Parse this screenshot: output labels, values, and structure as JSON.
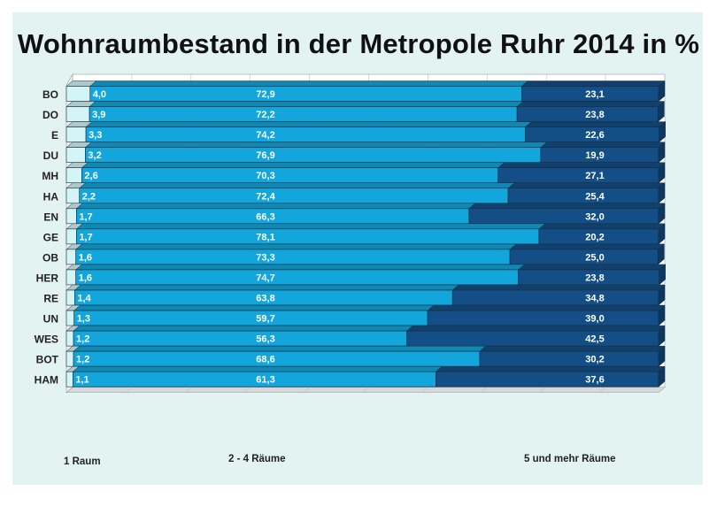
{
  "chart_data": {
    "type": "bar",
    "orientation": "horizontal",
    "stacked": true,
    "title": "Wohnraumbestand in der Metropole Ruhr 2014 in %",
    "categories": [
      "BO",
      "DO",
      "E",
      "DU",
      "MH",
      "HA",
      "EN",
      "GE",
      "OB",
      "HER",
      "RE",
      "UN",
      "WES",
      "BOT",
      "HAM"
    ],
    "series": [
      {
        "name": "1 Raum",
        "color": "#d4f5f7",
        "values": [
          "4,0",
          "3,9",
          "3,3",
          "3,2",
          "2,6",
          "2,2",
          "1,7",
          "1,7",
          "1,6",
          "1,6",
          "1,4",
          "1,3",
          "1,2",
          "1,2",
          "1,1"
        ]
      },
      {
        "name": "2 - 4 Räume",
        "color": "#12a6dc",
        "values": [
          "72,9",
          "72,2",
          "74,2",
          "76,9",
          "70,3",
          "72,4",
          "66,3",
          "78,1",
          "73,3",
          "74,7",
          "63,8",
          "59,7",
          "56,3",
          "68,6",
          "61,3"
        ]
      },
      {
        "name": "5 und mehr Räume",
        "color": "#134f86",
        "values": [
          "23,1",
          "23,8",
          "22,6",
          "19,9",
          "27,1",
          "25,4",
          "32,0",
          "20,2",
          "25,0",
          "23,8",
          "34,8",
          "39,0",
          "42,5",
          "30,2",
          "37,6"
        ]
      }
    ],
    "xlim": [
      0,
      100
    ],
    "grid": true,
    "legend_position": "bottom"
  },
  "colors": {
    "background": "#e3f3f2",
    "grid": "#c3c6c8",
    "wall": "#ffffff"
  }
}
